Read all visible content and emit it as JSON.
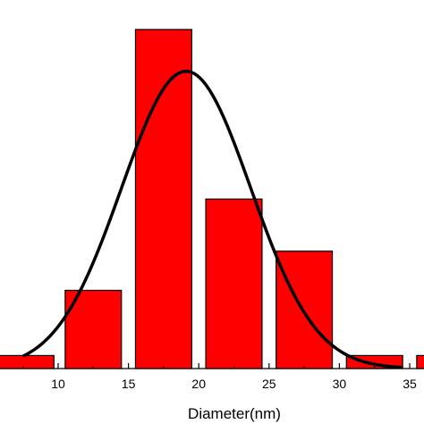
{
  "chart_data": {
    "type": "bar",
    "xlabel": "Diameter(nm)",
    "ylabel": "",
    "title": "",
    "xlim": [
      0,
      35.5
    ],
    "ylim": [
      0,
      28
    ],
    "x_ticks": [
      10,
      15,
      20,
      25,
      30,
      35
    ],
    "bars": [
      {
        "x0": 0,
        "x1": 9.7,
        "value": 1
      },
      {
        "x0": 10.5,
        "x1": 14.5,
        "value": 6
      },
      {
        "x0": 15.5,
        "x1": 19.5,
        "value": 26
      },
      {
        "x0": 20.5,
        "x1": 24.5,
        "value": 13
      },
      {
        "x0": 25.5,
        "x1": 29.5,
        "value": 9
      },
      {
        "x0": 30.5,
        "x1": 34.5,
        "value": 1
      },
      {
        "x0": 35.5,
        "x1": 36.5,
        "value": 1
      }
    ],
    "fit_curve": {
      "type": "gaussian",
      "mean": 19.1,
      "sigma": 4.6,
      "peak": 22.8,
      "x_range": [
        7.5,
        34.5
      ]
    },
    "colors": {
      "bar_fill": "#ff0000",
      "bar_stroke": "#000000",
      "curve": "#000000"
    },
    "grid": false,
    "legend": "none"
  }
}
